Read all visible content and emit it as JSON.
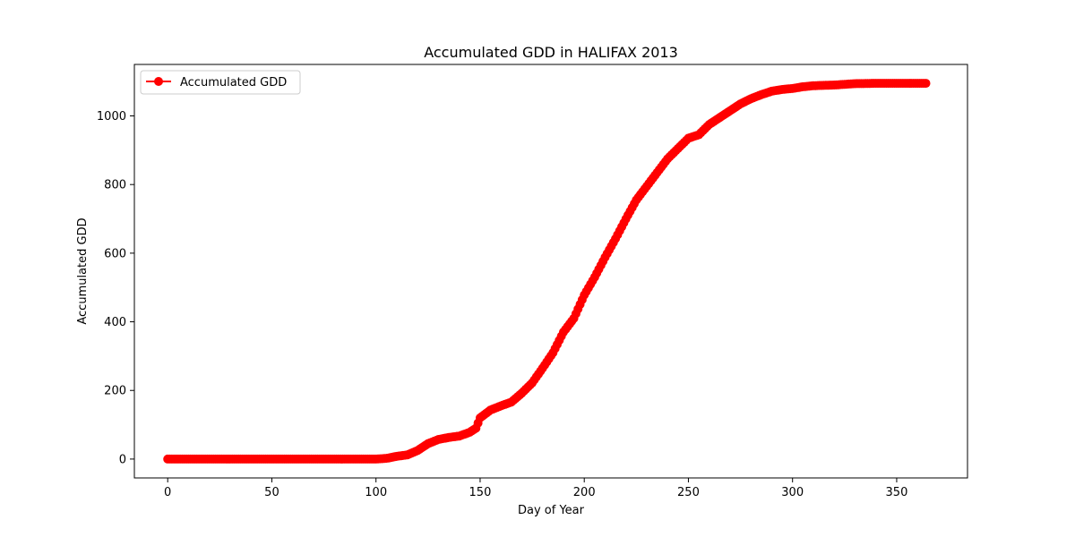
{
  "chart_data": {
    "type": "line",
    "title": "Accumulated GDD in HALIFAX 2013",
    "xlabel": "Day of Year",
    "ylabel": "Accumulated GDD",
    "xlim": [
      -16,
      384
    ],
    "ylim": [
      -55,
      1150
    ],
    "xticks": [
      0,
      50,
      100,
      150,
      200,
      250,
      300,
      350
    ],
    "yticks": [
      0,
      200,
      400,
      600,
      800,
      1000
    ],
    "grid": false,
    "legend_position": "top-left",
    "series": [
      {
        "name": "Accumulated GDD",
        "color": "#ff0000",
        "marker": "circle",
        "x": [
          0,
          100,
          105,
          110,
          115,
          120,
          125,
          130,
          135,
          140,
          145,
          148,
          150,
          155,
          160,
          165,
          170,
          175,
          180,
          185,
          190,
          195,
          200,
          205,
          210,
          215,
          220,
          225,
          230,
          235,
          240,
          245,
          250,
          255,
          260,
          265,
          270,
          275,
          280,
          285,
          290,
          295,
          300,
          305,
          310,
          320,
          330,
          340,
          350,
          364
        ],
        "y": [
          0,
          0,
          2,
          8,
          12,
          25,
          45,
          57,
          63,
          67,
          78,
          90,
          120,
          143,
          155,
          166,
          192,
          222,
          265,
          310,
          370,
          410,
          478,
          530,
          588,
          642,
          700,
          755,
          795,
          835,
          875,
          905,
          935,
          945,
          975,
          995,
          1015,
          1035,
          1050,
          1062,
          1072,
          1077,
          1080,
          1085,
          1088,
          1090,
          1094,
          1095,
          1095,
          1095
        ]
      }
    ]
  }
}
